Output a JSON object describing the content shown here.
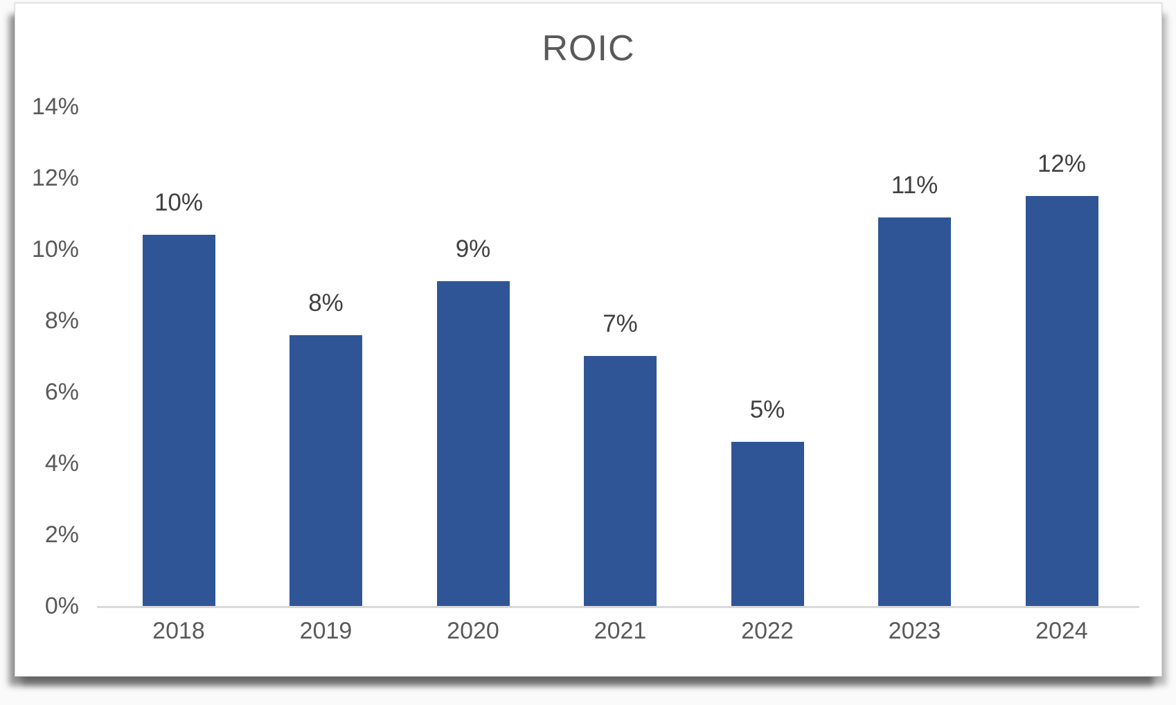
{
  "chart_data": {
    "type": "bar",
    "title": "ROIC",
    "categories": [
      "2018",
      "2019",
      "2020",
      "2021",
      "2022",
      "2023",
      "2024"
    ],
    "values": [
      10.4,
      7.6,
      9.1,
      7.0,
      4.6,
      10.9,
      11.5
    ],
    "data_labels": [
      "10%",
      "8%",
      "9%",
      "7%",
      "5%",
      "11%",
      "12%"
    ],
    "y_ticks": [
      "0%",
      "2%",
      "4%",
      "6%",
      "8%",
      "10%",
      "12%",
      "14%"
    ],
    "ylim": [
      0,
      14
    ],
    "xlabel": "",
    "ylabel": "",
    "grid": false,
    "legend": false,
    "colors": {
      "bar": "#2F5597",
      "title": "#595959",
      "axis_labels": "#595959",
      "data_labels": "#404040",
      "axis_line": "#D9D9D9",
      "panel_background": "#FFFFFF"
    }
  }
}
